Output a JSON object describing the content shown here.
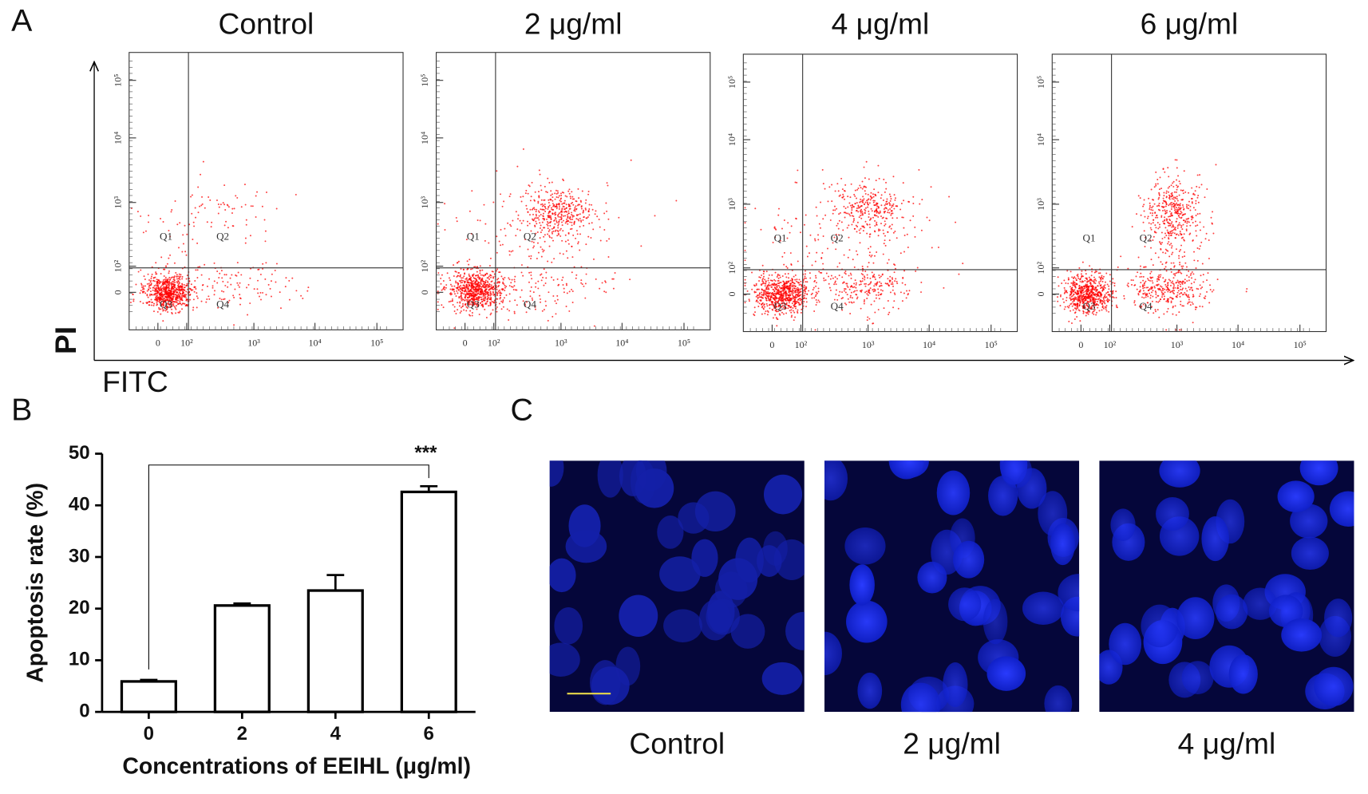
{
  "panel_labels": [
    "A",
    "B",
    "C"
  ],
  "flow": {
    "titles": [
      "Control",
      "2 μg/ml",
      "4 μg/ml",
      "6 μg/ml"
    ],
    "xlabel": "FITC",
    "ylabel": "PI",
    "quadrants": [
      "Q1",
      "Q2",
      "Q3",
      "Q4"
    ],
    "xtick_labels": [
      "0",
      "10²",
      "10³",
      "10⁴",
      "10⁵"
    ],
    "ytick_labels": [
      "0",
      "10²",
      "10³",
      "10⁴",
      "10⁵"
    ]
  },
  "chart_data": {
    "type": "bar",
    "categories": [
      "0",
      "2",
      "4",
      "6"
    ],
    "values": [
      5.9,
      20.6,
      23.5,
      42.6
    ],
    "errors": [
      0.3,
      0.4,
      3.0,
      1.1
    ],
    "color": "#ffffff",
    "edge_color": "#000000",
    "ylim": [
      0,
      50
    ],
    "yticks": [
      0,
      10,
      20,
      30,
      40,
      50
    ],
    "ylabel": "Apoptosis rate (%)",
    "xlabel": "Concentrations of EEIHL (μg/ml)",
    "annotation": "***"
  },
  "images": {
    "labels": [
      "Control",
      "2 μg/ml",
      "4 μg/ml"
    ]
  }
}
